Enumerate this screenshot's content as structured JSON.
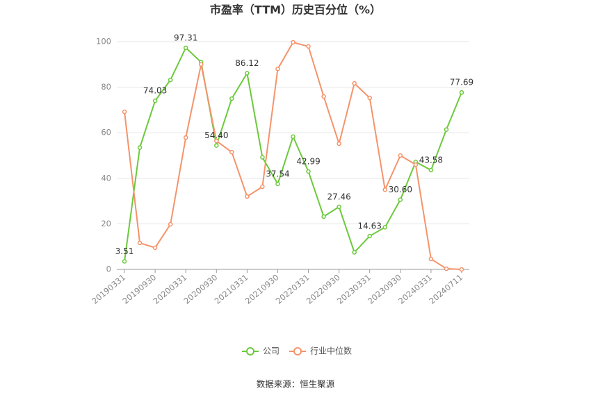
{
  "chart_data": {
    "type": "line",
    "title": "市盈率（TTM）历史百分位（%）",
    "categories": [
      "20190331",
      null,
      "20190930",
      null,
      "20200331",
      null,
      "20200930",
      null,
      "20210331",
      null,
      "20210930",
      null,
      "20220331",
      null,
      "20220930",
      null,
      "20230331",
      null,
      "20230930",
      null,
      "20240331",
      null,
      "20240711"
    ],
    "series": [
      {
        "name": "公司",
        "color": "#6cc93c",
        "values": [
          3.51,
          53.5,
          74.03,
          83.2,
          97.31,
          91,
          54.4,
          75,
          86.12,
          49.2,
          37.54,
          58.3,
          42.99,
          23.2,
          27.46,
          7.5,
          14.63,
          18.5,
          30.6,
          47.2,
          43.58,
          61.4,
          77.69
        ],
        "value_labels": [
          "3.51",
          null,
          "74.03",
          null,
          "97.31",
          null,
          "54.40",
          null,
          "86.12",
          null,
          "37.54",
          null,
          "42.99",
          null,
          "27.46",
          null,
          "14.63",
          null,
          "30.60",
          null,
          "43.58",
          null,
          "77.69"
        ]
      },
      {
        "name": "行业中位数",
        "color": "#f5936a",
        "values": [
          69.2,
          11.6,
          9.5,
          19.8,
          57.9,
          90,
          56.4,
          51.5,
          32,
          36.3,
          88,
          99.7,
          97.9,
          75.9,
          55.2,
          81.7,
          75.3,
          35,
          50,
          46,
          4.6,
          0.3,
          0
        ]
      }
    ],
    "ylim": [
      0,
      100
    ],
    "yticks": [
      0,
      20,
      40,
      60,
      80,
      100
    ],
    "grid": true,
    "source": "数据来源：恒生聚源"
  }
}
